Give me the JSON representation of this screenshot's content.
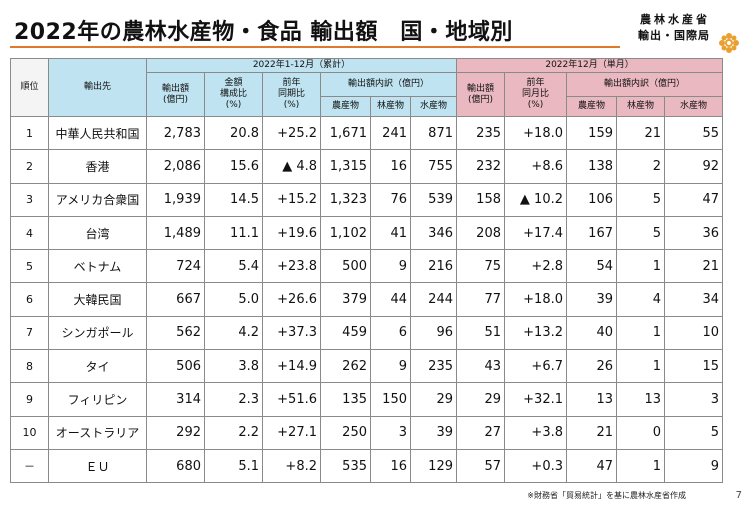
{
  "title": "2022年の農林水産物・食品 輸出額　国・地域別",
  "org": {
    "line1": "農林水産省",
    "line2": "輸出・国際局"
  },
  "headers": {
    "rank": "順位",
    "destination": "輸出先",
    "group_cum": "2022年1-12月（累計）",
    "group_dec": "2022年12月（単月）",
    "amount": "輸出額\n(億円)",
    "share": "金額\n構成比\n(%)",
    "yoy": "前年\n同期比\n(%)",
    "yoy_month": "前年\n同月比\n(%)",
    "breakdown": "輸出額内訳（億円）",
    "agri": "農産物",
    "forest": "林産物",
    "fish": "水産物"
  },
  "rows": [
    {
      "rank": "1",
      "name": "中華人民共和国",
      "amount": "2,783",
      "share": "20.8",
      "yoy": "+25.2",
      "agri": "1,671",
      "forest": "241",
      "fish": "871",
      "m_amount": "235",
      "m_yoy": "+18.0",
      "m_agri": "159",
      "m_forest": "21",
      "m_fish": "55"
    },
    {
      "rank": "2",
      "name": "香港",
      "amount": "2,086",
      "share": "15.6",
      "yoy": "▲ 4.8",
      "agri": "1,315",
      "forest": "16",
      "fish": "755",
      "m_amount": "232",
      "m_yoy": "+8.6",
      "m_agri": "138",
      "m_forest": "2",
      "m_fish": "92"
    },
    {
      "rank": "3",
      "name": "アメリカ合衆国",
      "amount": "1,939",
      "share": "14.5",
      "yoy": "+15.2",
      "agri": "1,323",
      "forest": "76",
      "fish": "539",
      "m_amount": "158",
      "m_yoy": "▲ 10.2",
      "m_agri": "106",
      "m_forest": "5",
      "m_fish": "47"
    },
    {
      "rank": "4",
      "name": "台湾",
      "amount": "1,489",
      "share": "11.1",
      "yoy": "+19.6",
      "agri": "1,102",
      "forest": "41",
      "fish": "346",
      "m_amount": "208",
      "m_yoy": "+17.4",
      "m_agri": "167",
      "m_forest": "5",
      "m_fish": "36"
    },
    {
      "rank": "5",
      "name": "ベトナム",
      "amount": "724",
      "share": "5.4",
      "yoy": "+23.8",
      "agri": "500",
      "forest": "9",
      "fish": "216",
      "m_amount": "75",
      "m_yoy": "+2.8",
      "m_agri": "54",
      "m_forest": "1",
      "m_fish": "21"
    },
    {
      "rank": "6",
      "name": "大韓民国",
      "amount": "667",
      "share": "5.0",
      "yoy": "+26.6",
      "agri": "379",
      "forest": "44",
      "fish": "244",
      "m_amount": "77",
      "m_yoy": "+18.0",
      "m_agri": "39",
      "m_forest": "4",
      "m_fish": "34"
    },
    {
      "rank": "7",
      "name": "シンガポール",
      "amount": "562",
      "share": "4.2",
      "yoy": "+37.3",
      "agri": "459",
      "forest": "6",
      "fish": "96",
      "m_amount": "51",
      "m_yoy": "+13.2",
      "m_agri": "40",
      "m_forest": "1",
      "m_fish": "10"
    },
    {
      "rank": "8",
      "name": "タイ",
      "amount": "506",
      "share": "3.8",
      "yoy": "+14.9",
      "agri": "262",
      "forest": "9",
      "fish": "235",
      "m_amount": "43",
      "m_yoy": "+6.7",
      "m_agri": "26",
      "m_forest": "1",
      "m_fish": "15"
    },
    {
      "rank": "9",
      "name": "フィリピン",
      "amount": "314",
      "share": "2.3",
      "yoy": "+51.6",
      "agri": "135",
      "forest": "150",
      "fish": "29",
      "m_amount": "29",
      "m_yoy": "+32.1",
      "m_agri": "13",
      "m_forest": "13",
      "m_fish": "3"
    },
    {
      "rank": "10",
      "name": "オーストラリア",
      "amount": "292",
      "share": "2.2",
      "yoy": "+27.1",
      "agri": "250",
      "forest": "3",
      "fish": "39",
      "m_amount": "27",
      "m_yoy": "+3.8",
      "m_agri": "21",
      "m_forest": "0",
      "m_fish": "5"
    },
    {
      "rank": "－",
      "name": "ＥＵ",
      "amount": "680",
      "share": "5.1",
      "yoy": "+8.2",
      "agri": "535",
      "forest": "16",
      "fish": "129",
      "m_amount": "57",
      "m_yoy": "+0.3",
      "m_agri": "47",
      "m_forest": "1",
      "m_fish": "9"
    }
  ],
  "footnote": "※財務省「貿易統計」を基に農林水産省作成",
  "page_number": "7",
  "colors": {
    "accent_rule": "#e07a2a",
    "header_blue": "#bfe3f0",
    "header_pink": "#eab8c0",
    "logo": "#e8a030"
  }
}
